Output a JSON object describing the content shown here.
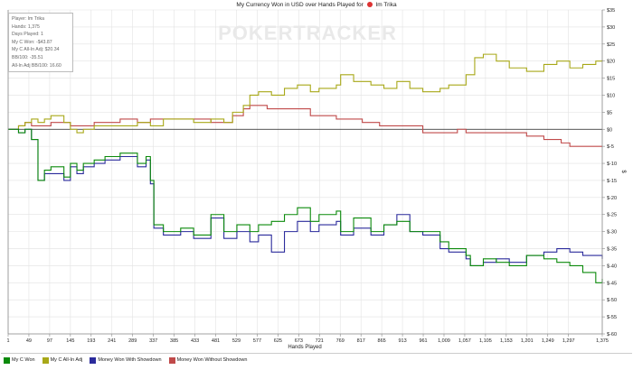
{
  "title": {
    "prefix": "My Currency Won in USD over Hands Played for",
    "player": "Im Trika"
  },
  "watermark": "POKERTRACKER",
  "info_box": [
    "Player: Im Trika",
    "Hands: 1,375",
    "Days Played: 1",
    "My C Won: -$43.87",
    "My C All-In Adj: $20.34",
    "BB/100: -35.51",
    "All-In Adj BB/100: 16.60"
  ],
  "colors": {
    "won": "#0b8a0b",
    "allin": "#a8a818",
    "showdown": "#2b2b9c",
    "nonshowdown": "#c04a4a"
  },
  "chart_data": {
    "type": "line",
    "title": "My Currency Won in USD over Hands Played for Im Trika",
    "xlabel": "Hands Played",
    "ylabel": "$",
    "xlim": [
      1,
      1375
    ],
    "ylim": [
      -60,
      35
    ],
    "x_ticks": [
      1,
      49,
      97,
      145,
      193,
      241,
      289,
      337,
      385,
      433,
      481,
      529,
      577,
      625,
      673,
      721,
      769,
      817,
      865,
      913,
      961,
      1009,
      1057,
      1105,
      1153,
      1201,
      1249,
      1297,
      1375
    ],
    "y_ticks": [
      35,
      30,
      25,
      20,
      15,
      10,
      5,
      0,
      -5,
      -10,
      -15,
      -20,
      -25,
      -30,
      -35,
      -40,
      -45,
      -50,
      -55,
      -60
    ],
    "y_tick_labels": [
      "$35",
      "$30",
      "$25",
      "$20",
      "$15",
      "$10",
      "$5",
      "$0",
      "$-5",
      "$-10",
      "$-15",
      "$-20",
      "$-25",
      "$-30",
      "$-35",
      "$-40",
      "$-45",
      "$-50",
      "$-55",
      "$-60"
    ],
    "grid": true,
    "legend_position": "bottom",
    "series": [
      {
        "name": "My C Won",
        "x": [
          1,
          25,
          40,
          55,
          70,
          85,
          100,
          130,
          145,
          160,
          175,
          200,
          225,
          260,
          300,
          320,
          330,
          338,
          360,
          400,
          430,
          470,
          500,
          530,
          560,
          580,
          610,
          640,
          670,
          700,
          720,
          760,
          770,
          800,
          840,
          870,
          900,
          930,
          960,
          1000,
          1020,
          1060,
          1070,
          1100,
          1130,
          1160,
          1200,
          1240,
          1270,
          1300,
          1330,
          1360,
          1375
        ],
        "y": [
          0,
          -1,
          0,
          -3,
          -15,
          -12,
          -11,
          -14,
          -10,
          -12,
          -10,
          -9,
          -8,
          -7,
          -10,
          -8,
          -15,
          -28,
          -30,
          -29,
          -31,
          -25,
          -30,
          -28,
          -30,
          -28,
          -27,
          -25,
          -23,
          -27,
          -25,
          -24,
          -30,
          -26,
          -30,
          -28,
          -27,
          -30,
          -30,
          -33,
          -35,
          -37,
          -40,
          -38,
          -39,
          -40,
          -37,
          -38,
          -39,
          -40,
          -42,
          -45,
          -43.87
        ]
      },
      {
        "name": "My C All-In Adj",
        "x": [
          1,
          25,
          40,
          55,
          70,
          85,
          100,
          130,
          145,
          160,
          175,
          200,
          225,
          260,
          300,
          330,
          360,
          400,
          430,
          470,
          500,
          520,
          545,
          560,
          580,
          610,
          640,
          670,
          700,
          720,
          760,
          770,
          800,
          840,
          870,
          900,
          930,
          960,
          1000,
          1020,
          1060,
          1080,
          1100,
          1130,
          1160,
          1200,
          1240,
          1270,
          1300,
          1330,
          1360,
          1375
        ],
        "y": [
          0,
          1,
          2,
          3,
          2,
          3,
          4,
          2,
          0,
          -1,
          0,
          1,
          1,
          1,
          2,
          1,
          3,
          3,
          2,
          3,
          2,
          5,
          7,
          10,
          11,
          10,
          12,
          13,
          11,
          12,
          13,
          16,
          14,
          13,
          12,
          14,
          12,
          11,
          12,
          13,
          16,
          21,
          22,
          20,
          18,
          17,
          19,
          20,
          18,
          19,
          20,
          20.34
        ]
      },
      {
        "name": "Money Won With Showdown",
        "x": [
          1,
          25,
          40,
          55,
          70,
          85,
          100,
          130,
          145,
          160,
          175,
          200,
          225,
          260,
          300,
          320,
          330,
          338,
          360,
          400,
          430,
          470,
          500,
          530,
          560,
          580,
          610,
          640,
          670,
          700,
          720,
          760,
          770,
          800,
          840,
          870,
          900,
          930,
          960,
          1000,
          1020,
          1060,
          1070,
          1100,
          1130,
          1160,
          1200,
          1240,
          1270,
          1300,
          1330,
          1360,
          1375
        ],
        "y": [
          0,
          -1,
          0,
          -3,
          -15,
          -13,
          -13,
          -15,
          -11,
          -13,
          -11,
          -10,
          -9,
          -8,
          -11,
          -9,
          -16,
          -29,
          -31,
          -30,
          -32,
          -26,
          -32,
          -30,
          -33,
          -31,
          -36,
          -30,
          -27,
          -30,
          -28,
          -27,
          -31,
          -29,
          -31,
          -28,
          -25,
          -30,
          -31,
          -35,
          -36,
          -38,
          -40,
          -39,
          -38,
          -39,
          -37,
          -36,
          -35,
          -36,
          -37,
          -37,
          -38
        ]
      },
      {
        "name": "Money Won Without Showdown",
        "x": [
          1,
          25,
          40,
          55,
          70,
          100,
          145,
          175,
          200,
          260,
          300,
          330,
          400,
          470,
          520,
          545,
          560,
          600,
          640,
          700,
          760,
          820,
          860,
          900,
          960,
          1000,
          1040,
          1060,
          1100,
          1160,
          1200,
          1240,
          1280,
          1300,
          1340,
          1375
        ],
        "y": [
          0,
          1,
          2,
          1,
          1,
          2,
          1,
          1,
          2,
          3,
          2,
          3,
          3,
          2,
          4,
          6,
          7,
          6,
          6,
          4,
          3,
          2,
          1,
          1,
          -1,
          -1,
          0,
          -1,
          -1,
          -1,
          -2,
          -3,
          -4,
          -5,
          -5,
          -5
        ]
      }
    ]
  }
}
